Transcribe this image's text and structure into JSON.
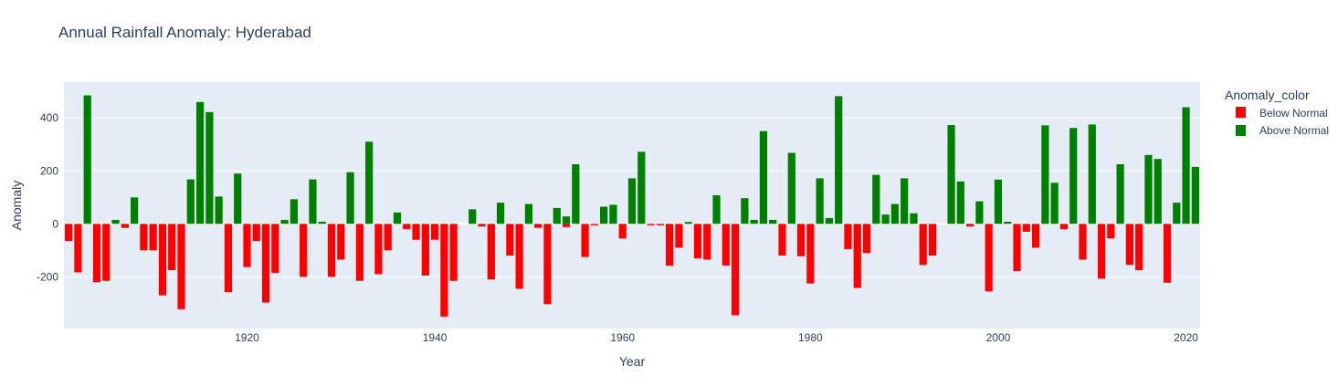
{
  "chart_data": {
    "type": "bar",
    "title": "Annual Rainfall Anomaly: Hyderabad",
    "xlabel": "Year",
    "ylabel": "Anomaly",
    "xlim": [
      1900.5,
      2021.5
    ],
    "ylim": [
      -395,
      535
    ],
    "x_ticks": [
      1920,
      1940,
      1960,
      1980,
      2000,
      2020
    ],
    "y_ticks": [
      -200,
      0,
      200,
      400
    ],
    "grid": true,
    "legend_position": "right",
    "legend": {
      "title": "Anomaly_color",
      "entries": [
        {
          "label": "Below Normal",
          "color": "#ff0000"
        },
        {
          "label": "Above Normal",
          "color": "#008000"
        }
      ]
    },
    "colors": {
      "Below Normal": "#ff0000",
      "Above Normal": "#008000",
      "plot_bg": "#e5ecf6"
    },
    "series": [
      {
        "name": "Below Normal",
        "x": [
          1901,
          1902,
          1904,
          1905,
          1907,
          1909,
          1910,
          1911,
          1912,
          1913,
          1918,
          1920,
          1921,
          1922,
          1923,
          1926,
          1929,
          1930,
          1932,
          1934,
          1935,
          1937,
          1938,
          1939,
          1940,
          1941,
          1942,
          1945,
          1946,
          1948,
          1949,
          1951,
          1952,
          1954,
          1956,
          1957,
          1960,
          1963,
          1964,
          1965,
          1966,
          1968,
          1969,
          1971,
          1972,
          1977,
          1979,
          1980,
          1984,
          1985,
          1986,
          1992,
          1993,
          1997,
          1999,
          2002,
          2003,
          2004,
          2007,
          2009,
          2011,
          2012,
          2014,
          2015,
          2018
        ],
        "values": [
          -65,
          -183,
          -220,
          -215,
          -15,
          -100,
          -100,
          -270,
          -175,
          -322,
          -258,
          -163,
          -65,
          -297,
          -185,
          -200,
          -200,
          -135,
          -215,
          -190,
          -100,
          -20,
          -60,
          -195,
          -60,
          -350,
          -215,
          -10,
          -210,
          -120,
          -245,
          -15,
          -303,
          -12,
          -125,
          -5,
          -55,
          -5,
          -5,
          -158,
          -90,
          -130,
          -135,
          -157,
          -345,
          -120,
          -122,
          -225,
          -95,
          -242,
          -110,
          -155,
          -120,
          -10,
          -255,
          -178,
          -30,
          -90,
          -20,
          -135,
          -207,
          -55,
          -155,
          -175,
          -222
        ]
      },
      {
        "name": "Above Normal",
        "x": [
          1903,
          1906,
          1908,
          1914,
          1915,
          1916,
          1917,
          1919,
          1924,
          1925,
          1927,
          1928,
          1931,
          1933,
          1936,
          1944,
          1947,
          1950,
          1953,
          1954,
          1955,
          1958,
          1959,
          1961,
          1962,
          1967,
          1970,
          1973,
          1974,
          1975,
          1976,
          1978,
          1981,
          1982,
          1983,
          1987,
          1988,
          1989,
          1990,
          1991,
          1995,
          1996,
          1998,
          2000,
          2001,
          2005,
          2006,
          2008,
          2010,
          2013,
          2016,
          2017,
          2019,
          2020,
          2021
        ],
        "values": [
          485,
          15,
          100,
          168,
          460,
          422,
          103,
          190,
          15,
          93,
          168,
          8,
          195,
          310,
          43,
          55,
          80,
          75,
          60,
          28,
          225,
          65,
          72,
          172,
          272,
          7,
          108,
          97,
          15,
          350,
          15,
          268,
          172,
          22,
          482,
          185,
          35,
          75,
          172,
          40,
          373,
          160,
          85,
          167,
          8,
          372,
          155,
          362,
          375,
          225,
          260,
          245,
          80,
          440,
          215
        ]
      }
    ]
  }
}
